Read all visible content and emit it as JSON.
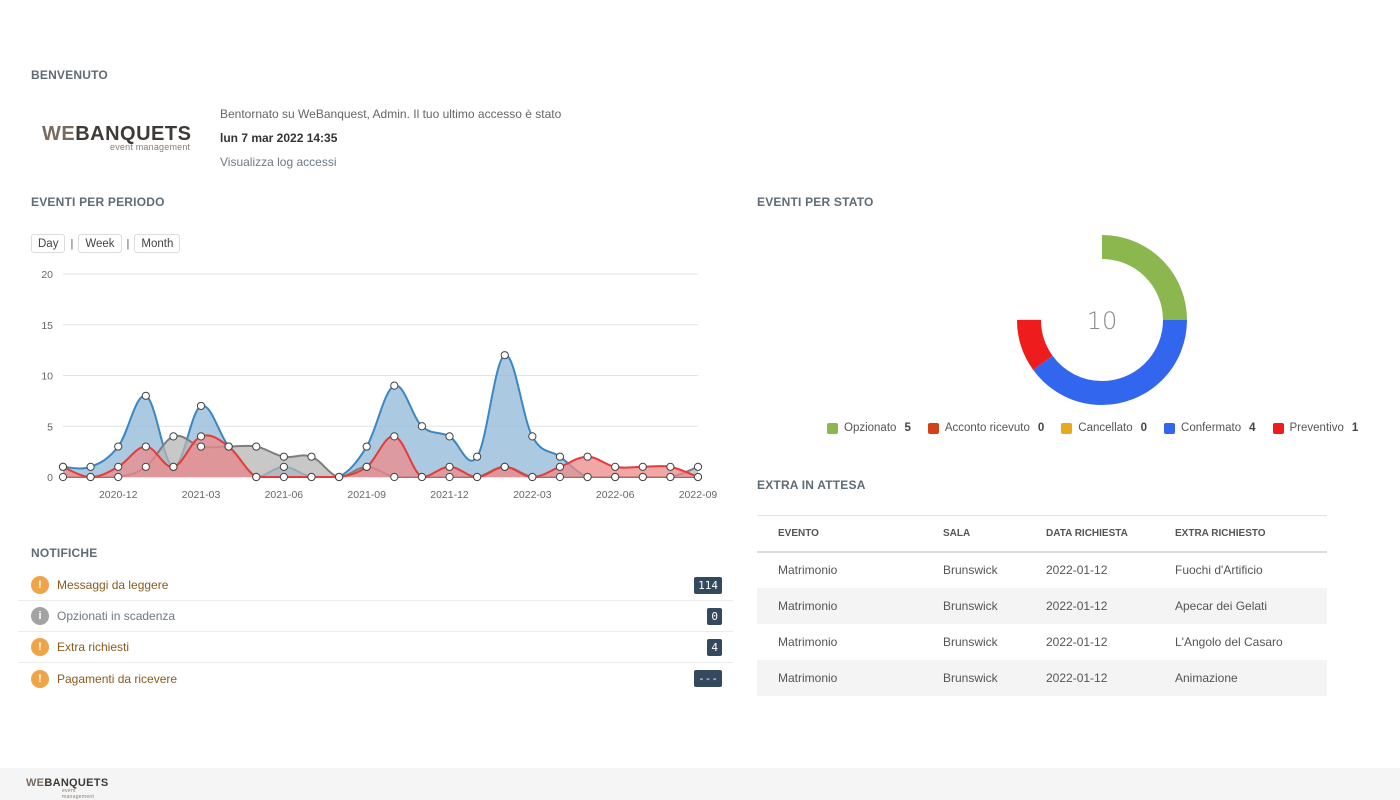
{
  "welcome": {
    "title": "BENVENUTO",
    "logo_we": "WE",
    "logo_rest": "BANQUETS",
    "logo_sub": "event management",
    "message": "Bentornato su WeBanquest, Admin. Il tuo ultimo accesso è stato",
    "last_access": "lun 7 mar 2022 14:35",
    "log_link": "Visualizza log accessi"
  },
  "events_period": {
    "title": "EVENTI PER PERIODO",
    "range_buttons": [
      "Day",
      "Week",
      "Month"
    ],
    "separator": "|"
  },
  "chart_data": {
    "type": "area",
    "x": [
      "2020-10",
      "2020-11",
      "2020-12",
      "2021-01",
      "2021-02",
      "2021-03",
      "2021-04",
      "2021-05",
      "2021-06",
      "2021-07",
      "2021-08",
      "2021-09",
      "2021-10",
      "2021-11",
      "2021-12",
      "2022-01",
      "2022-02",
      "2022-03",
      "2022-04",
      "2022-05",
      "2022-06",
      "2022-07",
      "2022-08",
      "2022-09"
    ],
    "x_ticks": [
      "2020-12",
      "2021-03",
      "2021-06",
      "2021-09",
      "2021-12",
      "2022-03",
      "2022-06",
      "2022-09"
    ],
    "ylim": [
      0,
      20
    ],
    "y_ticks": [
      0,
      5,
      10,
      15,
      20
    ],
    "grid": true,
    "series": [
      {
        "color": "#3b87c4",
        "fill": "#8fb8d8",
        "values": [
          1,
          1,
          3,
          8,
          1,
          7,
          3,
          0,
          1,
          0,
          0,
          3,
          9,
          5,
          4,
          2,
          12,
          4,
          2,
          0,
          0,
          0,
          0,
          0
        ]
      },
      {
        "color": "#7d7d7d",
        "fill": "#b5b5b5",
        "values": [
          0,
          0,
          0,
          1,
          4,
          3,
          3,
          3,
          2,
          2,
          0,
          1,
          0,
          0,
          0,
          0,
          1,
          0,
          0,
          0,
          0,
          0,
          0,
          1
        ]
      },
      {
        "color": "#e83a3a",
        "fill": "#ee8a8a",
        "values": [
          1,
          0,
          1,
          3,
          1,
          4,
          3,
          0,
          0,
          0,
          0,
          1,
          4,
          0,
          1,
          0,
          1,
          0,
          1,
          2,
          1,
          1,
          1,
          0
        ]
      }
    ]
  },
  "notifications": {
    "title": "NOTIFICHE",
    "items": [
      {
        "label": "Messaggi da leggere",
        "count": "114",
        "icon": "exclamation-icon",
        "icon_color": "#f0a44a",
        "label_color": "#8a5a1e"
      },
      {
        "label": "Opzionati in scadenza",
        "count": "0",
        "icon": "info-icon",
        "icon_color": "#a3a3a3",
        "label_color": "#6f7780"
      },
      {
        "label": "Extra richiesti",
        "count": "4",
        "icon": "exclamation-icon",
        "icon_color": "#f0a44a",
        "label_color": "#8a5a1e"
      },
      {
        "label": "Pagamenti da ricevere",
        "count": "---",
        "icon": "exclamation-icon",
        "icon_color": "#f0a44a",
        "label_color": "#8a5a1e"
      }
    ]
  },
  "events_status": {
    "title": "EVENTI PER STATO",
    "total": "10",
    "items": [
      {
        "label": "Opzionato",
        "count": 5,
        "color": "#8cb64e"
      },
      {
        "label": "Acconto ricevuto",
        "count": 0,
        "color": "#d2401c"
      },
      {
        "label": "Cancellato",
        "count": 0,
        "color": "#e8a91e"
      },
      {
        "label": "Confermato",
        "count": 4,
        "color": "#3366ee"
      },
      {
        "label": "Preventivo",
        "count": 1,
        "color": "#ee1c1c"
      }
    ]
  },
  "extra": {
    "title": "EXTRA IN ATTESA",
    "columns": [
      "EVENTO",
      "SALA",
      "DATA RICHIESTA",
      "EXTRA RICHIESTO"
    ],
    "rows": [
      [
        "Matrimonio",
        "Brunswick",
        "2022-01-12",
        "Fuochi d'Artificio"
      ],
      [
        "Matrimonio",
        "Brunswick",
        "2022-01-12",
        "Apecar dei Gelati"
      ],
      [
        "Matrimonio",
        "Brunswick",
        "2022-01-12",
        "L'Angolo del Casaro"
      ],
      [
        "Matrimonio",
        "Brunswick",
        "2022-01-12",
        "Animazione"
      ]
    ]
  },
  "footer": {
    "logo_we": "WE",
    "logo_rest": "BANQUETS",
    "logo_sub": "event management"
  }
}
